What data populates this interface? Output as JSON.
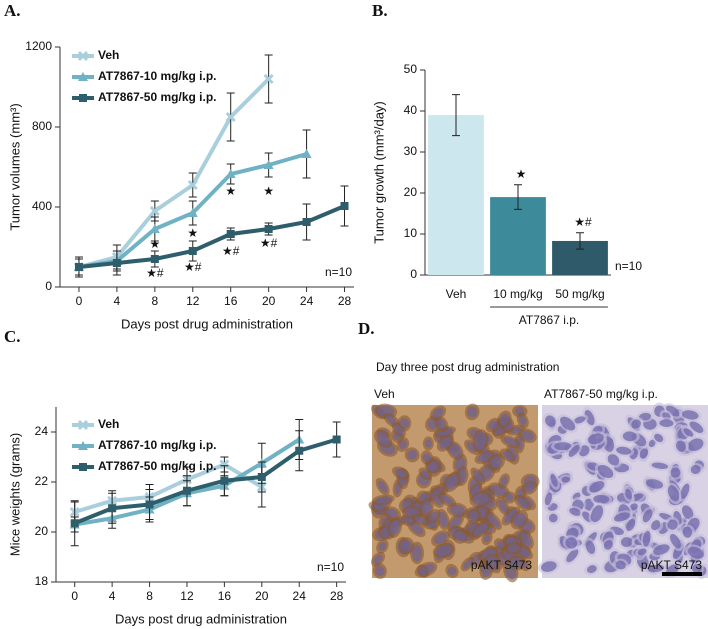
{
  "chart_data": [
    {
      "type": "line",
      "label": "A.",
      "ylabel": "Tumor volumes (mm³)",
      "xlabel": "Days post drug administration",
      "xlim": [
        -2,
        29
      ],
      "xticks": [
        0,
        4,
        8,
        12,
        16,
        20,
        24,
        28
      ],
      "ylim": [
        0,
        1200
      ],
      "yticks": [
        0,
        400,
        800,
        1200
      ],
      "series": [
        {
          "name": "Veh",
          "color": "#a9cfdc",
          "marker": "x",
          "x": [
            0,
            4,
            8,
            12,
            16,
            20
          ],
          "values": [
            100,
            150,
            380,
            510,
            850,
            1040
          ],
          "errors": [
            50,
            60,
            50,
            60,
            120,
            120
          ]
        },
        {
          "name": "AT7867-10 mg/kg i.p.",
          "color": "#6fb2c4",
          "marker": "triangle",
          "x": [
            0,
            4,
            8,
            12,
            16,
            20,
            24
          ],
          "values": [
            100,
            130,
            290,
            370,
            565,
            610,
            665
          ],
          "errors": [
            40,
            50,
            60,
            60,
            50,
            60,
            120
          ]
        },
        {
          "name": "AT7867-50 mg/kg i.p.",
          "color": "#2e5d6c",
          "marker": "square",
          "x": [
            0,
            4,
            8,
            12,
            16,
            20,
            24,
            28
          ],
          "values": [
            100,
            120,
            140,
            180,
            265,
            290,
            325,
            405
          ],
          "errors": [
            40,
            60,
            40,
            50,
            30,
            30,
            90,
            100
          ]
        }
      ],
      "annotations": [
        {
          "text": "★",
          "x": 8,
          "y": 210
        },
        {
          "text": "★#",
          "x": 8,
          "y": 65
        },
        {
          "text": "★",
          "x": 12,
          "y": 265
        },
        {
          "text": "★#",
          "x": 12,
          "y": 95
        },
        {
          "text": "★",
          "x": 16,
          "y": 475
        },
        {
          "text": "★#",
          "x": 16,
          "y": 175
        },
        {
          "text": "★",
          "x": 20,
          "y": 475
        },
        {
          "text": "★#",
          "x": 20,
          "y": 215
        }
      ],
      "note": "n=10"
    },
    {
      "type": "bar",
      "label": "B.",
      "ylabel": "Tumor growth (mm³/day)",
      "categories": [
        "Veh",
        "10 mg/kg",
        "50 mg/kg"
      ],
      "values": [
        39,
        19,
        8.3
      ],
      "errors": [
        5,
        3,
        2
      ],
      "colors": [
        "#cde7ef",
        "#3d8a9a",
        "#2e5a6a"
      ],
      "ylim": [
        0,
        50
      ],
      "yticks": [
        0,
        10,
        20,
        30,
        40,
        50
      ],
      "annotations": [
        {
          "text": "★",
          "category": "10 mg/kg"
        },
        {
          "text": "★#",
          "category": "50 mg/kg"
        }
      ],
      "group": {
        "label": "AT7867 i.p.",
        "categories": [
          "10 mg/kg",
          "50 mg/kg"
        ]
      },
      "note": "n=10"
    },
    {
      "type": "line",
      "label": "C.",
      "ylabel": "Mice weights (grams)",
      "xlabel": "Days post drug administration",
      "xlim": [
        -2,
        29
      ],
      "xticks": [
        0,
        4,
        8,
        12,
        16,
        20,
        24,
        28
      ],
      "ylim": [
        18,
        25
      ],
      "yticks": [
        18,
        20,
        22,
        24
      ],
      "series": [
        {
          "name": "Veh",
          "color": "#a9cfdc",
          "marker": "x",
          "x": [
            0,
            4,
            8,
            12,
            16,
            20
          ],
          "values": [
            20.8,
            21.25,
            21.4,
            22.1,
            22.7,
            21.8
          ],
          "errors": [
            0.4,
            0.4,
            0.5,
            0.5,
            0.3,
            0.8
          ]
        },
        {
          "name": "AT7867-10 mg/kg i.p.",
          "color": "#6fb2c4",
          "marker": "triangle",
          "x": [
            0,
            4,
            8,
            12,
            16,
            20,
            24
          ],
          "values": [
            20.3,
            20.55,
            20.9,
            21.55,
            21.85,
            22.75,
            23.7
          ],
          "errors": [
            0.3,
            0.4,
            0.5,
            0.5,
            0.4,
            0.8,
            0.8
          ]
        },
        {
          "name": "AT7867-50 mg/kg i.p.",
          "color": "#2e5d6c",
          "marker": "square",
          "x": [
            0,
            4,
            8,
            12,
            16,
            20,
            24,
            28
          ],
          "values": [
            20.35,
            20.95,
            21.1,
            21.65,
            22.05,
            22.2,
            23.25,
            23.7
          ],
          "errors": [
            0.9,
            0.6,
            0.6,
            0.6,
            0.6,
            0.6,
            0.8,
            0.7
          ]
        }
      ],
      "annotations": [],
      "note": "n=10"
    }
  ],
  "panel_d": {
    "label": "D.",
    "title": "Day three post drug administration",
    "images": [
      {
        "caption": "Veh",
        "stain": "pAKT S473"
      },
      {
        "caption": "AT7867-50 mg/kg i.p.",
        "stain": "pAKT S473"
      }
    ]
  }
}
